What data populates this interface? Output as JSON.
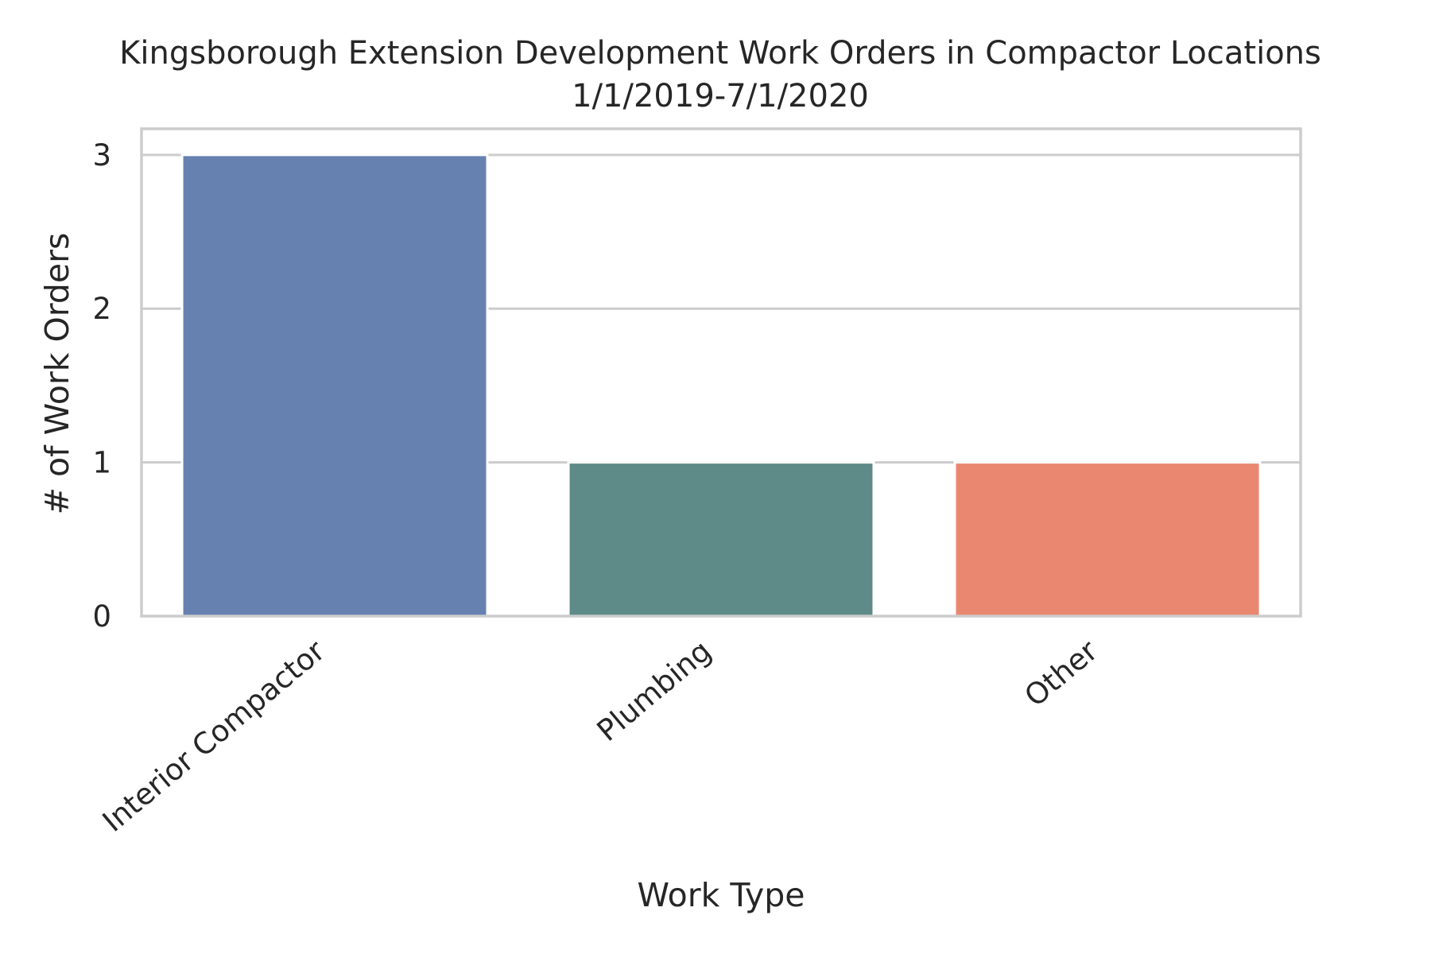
{
  "chart_data": {
    "type": "bar",
    "title": "Kingsborough Extension Development Work Orders in Compactor Locations",
    "subtitle": "1/1/2019-7/1/2020",
    "xlabel": "Work Type",
    "ylabel": "# of Work Orders",
    "categories": [
      "Interior Compactor",
      "Plumbing",
      "Other"
    ],
    "values": [
      3,
      1,
      1
    ],
    "colors": [
      "#6681b0",
      "#5e8b88",
      "#ea8770"
    ],
    "ylim": [
      0,
      3.17
    ],
    "yticks": [
      0,
      1,
      2,
      3
    ],
    "grid": true,
    "legend": "none"
  }
}
